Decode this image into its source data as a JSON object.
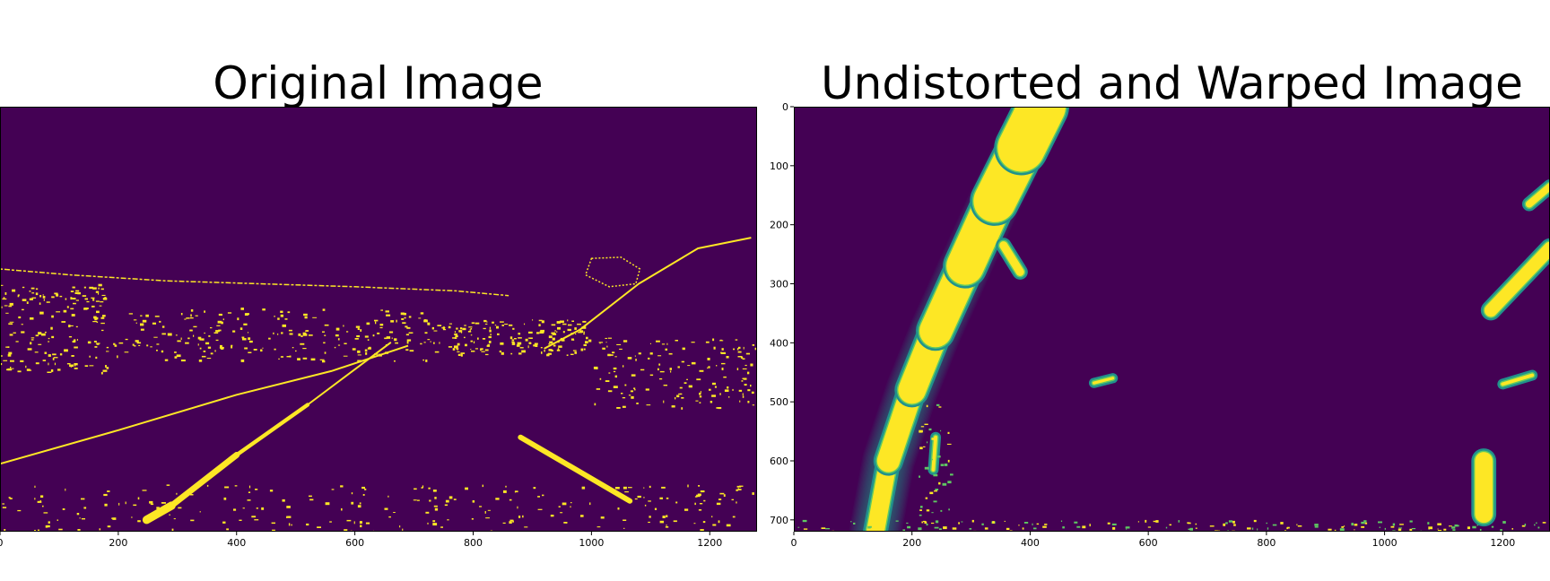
{
  "colors": {
    "background": "#440154",
    "line": "#fde725",
    "edge_mid": "#21918c",
    "edge_light": "#5ec962",
    "frame": "#000000"
  },
  "chart_data": [
    {
      "type": "heatmap",
      "title": "Original Image",
      "xlim": [
        0,
        1280
      ],
      "ylim": [
        720,
        0
      ],
      "x_ticks": [
        0,
        200,
        400,
        600,
        800,
        1000,
        1200
      ],
      "x_tick_labels": [
        "0",
        "200",
        "400",
        "600",
        "800",
        "1000",
        "1200"
      ],
      "y_ticks": [],
      "y_tick_labels": [],
      "colormap": "viridis",
      "content": "binary thresholded road scene",
      "features": [
        {
          "kind": "band",
          "points": [
            [
              248,
              700
            ],
            [
              290,
              676
            ],
            [
              400,
              590
            ],
            [
              520,
              505
            ],
            [
              660,
              400
            ]
          ],
          "width": [
            14,
            3
          ]
        },
        {
          "kind": "band",
          "points": [
            [
              880,
              560
            ],
            [
              1065,
              668
            ]
          ],
          "width": [
            9,
            9
          ]
        },
        {
          "kind": "line",
          "points": [
            [
              0,
              605
            ],
            [
              200,
              548
            ],
            [
              400,
              488
            ],
            [
              560,
              448
            ],
            [
              690,
              405
            ]
          ],
          "width": 2
        },
        {
          "kind": "line",
          "points": [
            [
              920,
              410
            ],
            [
              980,
              378
            ],
            [
              1080,
              300
            ],
            [
              1180,
              240
            ],
            [
              1270,
              222
            ]
          ],
          "width": 2
        },
        {
          "kind": "line",
          "points": [
            [
              0,
              275
            ],
            [
              120,
              285
            ],
            [
              280,
              295
            ],
            [
              440,
              300
            ],
            [
              600,
              305
            ],
            [
              770,
              312
            ],
            [
              860,
              320
            ]
          ],
          "width": 1.5,
          "dashed": true
        },
        {
          "kind": "blob",
          "points": [
            [
              1000,
              257
            ],
            [
              1050,
              255
            ],
            [
              1082,
              275
            ],
            [
              1075,
              300
            ],
            [
              1030,
              305
            ],
            [
              990,
              285
            ]
          ]
        },
        {
          "kind": "scatter-region",
          "x": [
            0,
            180
          ],
          "y": [
            300,
            450
          ],
          "count": 170
        },
        {
          "kind": "scatter-region",
          "x": [
            190,
            720
          ],
          "y": [
            340,
            430
          ],
          "count": 220
        },
        {
          "kind": "scatter-region",
          "x": [
            720,
            1000
          ],
          "y": [
            360,
            420
          ],
          "count": 170
        },
        {
          "kind": "scatter-region",
          "x": [
            1000,
            1280
          ],
          "y": [
            390,
            510
          ],
          "count": 150
        },
        {
          "kind": "scatter-region",
          "x": [
            0,
            1280
          ],
          "y": [
            640,
            720
          ],
          "count": 240
        }
      ]
    },
    {
      "type": "heatmap",
      "title": "Undistorted and Warped Image",
      "xlim": [
        0,
        1280
      ],
      "ylim": [
        720,
        0
      ],
      "x_ticks": [
        0,
        200,
        400,
        600,
        800,
        1000,
        1200
      ],
      "x_tick_labels": [
        "0",
        "200",
        "400",
        "600",
        "800",
        "1000",
        "1200"
      ],
      "y_ticks": [
        0,
        100,
        200,
        300,
        400,
        500,
        600,
        700
      ],
      "y_tick_labels": [
        "0",
        "100",
        "200",
        "300",
        "400",
        "500",
        "600",
        "700"
      ],
      "colormap": "viridis",
      "content": "bird's-eye view binary lane image",
      "features": [
        {
          "kind": "band",
          "points": [
            [
              138,
              720
            ],
            [
              160,
              600
            ],
            [
              200,
              480
            ],
            [
              240,
              380
            ],
            [
              290,
              270
            ],
            [
              340,
              160
            ],
            [
              385,
              70
            ],
            [
              420,
              0
            ]
          ],
          "width": [
            30,
            80
          ]
        },
        {
          "kind": "band",
          "points": [
            [
              355,
              235
            ],
            [
              383,
              280
            ]
          ],
          "width": [
            14,
            14
          ]
        },
        {
          "kind": "band",
          "points": [
            [
              1168,
              600
            ],
            [
              1168,
              690
            ]
          ],
          "width": [
            30,
            30
          ]
        },
        {
          "kind": "band",
          "points": [
            [
              1180,
              345
            ],
            [
              1280,
              240
            ]
          ],
          "width": [
            22,
            22
          ]
        },
        {
          "kind": "band",
          "points": [
            [
              1245,
              165
            ],
            [
              1280,
              135
            ]
          ],
          "width": [
            12,
            12
          ]
        },
        {
          "kind": "band",
          "points": [
            [
              1200,
              470
            ],
            [
              1250,
              455
            ]
          ],
          "width": [
            6,
            6
          ]
        },
        {
          "kind": "band",
          "points": [
            [
              508,
              468
            ],
            [
              540,
              460
            ]
          ],
          "width": [
            5,
            5
          ]
        },
        {
          "kind": "band",
          "points": [
            [
              240,
              560
            ],
            [
              236,
              615
            ]
          ],
          "width": [
            6,
            6
          ]
        },
        {
          "kind": "scatter-region",
          "x": [
            0,
            1280
          ],
          "y": [
            700,
            720
          ],
          "count": 160
        },
        {
          "kind": "scatter-region",
          "x": [
            210,
            265
          ],
          "y": [
            500,
            720
          ],
          "count": 40
        }
      ]
    }
  ]
}
